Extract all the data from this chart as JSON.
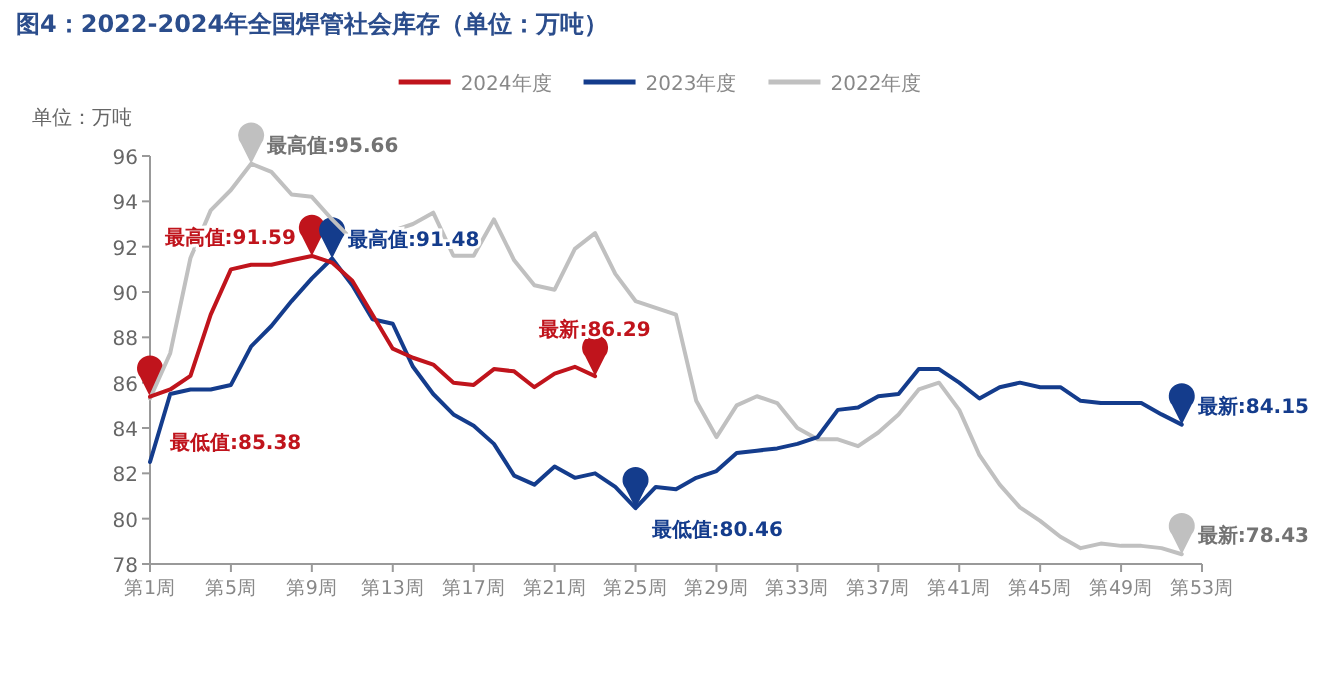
{
  "chart_data": {
    "type": "line",
    "title": "图4：2022-2024年全国焊管社会库存（单位：万吨）",
    "ylabel": "单位：万吨",
    "categories": [
      "第1周",
      null,
      null,
      null,
      "第5周",
      null,
      null,
      null,
      "第9周",
      null,
      null,
      null,
      "第13周",
      null,
      null,
      null,
      "第17周",
      null,
      null,
      null,
      "第21周",
      null,
      null,
      null,
      "第25周",
      null,
      null,
      null,
      "第29周",
      null,
      null,
      null,
      "第33周",
      null,
      null,
      null,
      "第37周",
      null,
      null,
      null,
      "第41周",
      null,
      null,
      null,
      "第45周",
      null,
      null,
      null,
      "第49周",
      null,
      null,
      null,
      "第53周"
    ],
    "ylim": [
      78,
      96
    ],
    "yticks": [
      78,
      80,
      82,
      84,
      86,
      88,
      90,
      92,
      94,
      96
    ],
    "legend": "top",
    "series": [
      {
        "name": "2024年度",
        "color": "#c0141c",
        "values": [
          85.38,
          85.7,
          86.3,
          89.0,
          91.0,
          91.2,
          91.2,
          91.4,
          91.59,
          91.3,
          90.5,
          89.0,
          87.5,
          87.1,
          86.8,
          86.0,
          85.9,
          86.6,
          86.5,
          85.8,
          86.4,
          86.7,
          86.29,
          null,
          null,
          null,
          null,
          null,
          null,
          null,
          null,
          null,
          null,
          null,
          null,
          null,
          null,
          null,
          null,
          null,
          null,
          null,
          null,
          null,
          null,
          null,
          null,
          null,
          null,
          null,
          null,
          null,
          null
        ],
        "value_labels": [
          "最低值:85.38",
          null,
          null,
          null,
          null,
          null,
          null,
          null,
          "最高值:91.59",
          null,
          null,
          null,
          null,
          null,
          null,
          null,
          null,
          null,
          null,
          null,
          null,
          null,
          "最新:86.29",
          null,
          null,
          null,
          null,
          null,
          null,
          null,
          null,
          null,
          null,
          null,
          null,
          null,
          null,
          null,
          null,
          null,
          null,
          null,
          null,
          null,
          null,
          null,
          null,
          null,
          null,
          null,
          null,
          null,
          null
        ]
      },
      {
        "name": "2023年度",
        "color": "#143c8c",
        "values": [
          82.5,
          85.5,
          85.7,
          85.7,
          85.9,
          87.6,
          88.5,
          89.6,
          90.6,
          91.48,
          90.3,
          88.8,
          88.6,
          86.7,
          85.5,
          84.6,
          84.1,
          83.3,
          81.9,
          81.5,
          82.3,
          81.8,
          82.0,
          81.4,
          80.46,
          81.4,
          81.3,
          81.8,
          82.1,
          82.9,
          83.0,
          83.1,
          83.3,
          83.6,
          84.8,
          84.9,
          85.4,
          85.5,
          86.6,
          86.6,
          86.0,
          85.3,
          85.8,
          86.0,
          85.8,
          85.8,
          85.2,
          85.1,
          85.1,
          85.1,
          84.6,
          84.15,
          null
        ],
        "value_labels": [
          null,
          null,
          null,
          null,
          null,
          null,
          null,
          null,
          null,
          "最高值:91.48",
          null,
          null,
          null,
          null,
          null,
          null,
          null,
          null,
          null,
          null,
          null,
          null,
          null,
          null,
          "最低值:80.46",
          null,
          null,
          null,
          null,
          null,
          null,
          null,
          null,
          null,
          null,
          null,
          null,
          null,
          null,
          null,
          null,
          null,
          null,
          null,
          null,
          null,
          null,
          null,
          null,
          null,
          null,
          "最新:84.15",
          null
        ]
      },
      {
        "name": "2022年度",
        "color": "#c0c0c0",
        "values": [
          85.3,
          87.3,
          91.5,
          93.6,
          94.5,
          95.66,
          95.3,
          94.3,
          94.2,
          93.2,
          92.3,
          92.1,
          92.7,
          93.0,
          93.5,
          91.6,
          91.6,
          93.2,
          91.4,
          90.3,
          90.1,
          91.9,
          92.6,
          90.8,
          89.6,
          89.3,
          89.0,
          85.2,
          83.6,
          85.0,
          85.4,
          85.1,
          84.0,
          83.5,
          83.5,
          83.2,
          83.8,
          84.6,
          85.7,
          86.0,
          84.8,
          82.8,
          81.5,
          80.5,
          79.9,
          79.2,
          78.7,
          78.9,
          78.8,
          78.8,
          78.7,
          78.43,
          null
        ],
        "value_labels": [
          null,
          null,
          null,
          null,
          null,
          "最高值:95.66",
          null,
          null,
          null,
          null,
          null,
          null,
          null,
          null,
          null,
          null,
          null,
          null,
          null,
          null,
          null,
          null,
          null,
          null,
          null,
          null,
          null,
          null,
          null,
          null,
          null,
          null,
          null,
          null,
          null,
          null,
          null,
          null,
          null,
          null,
          null,
          null,
          null,
          null,
          null,
          null,
          null,
          null,
          null,
          null,
          null,
          "最新:78.43",
          null
        ]
      }
    ]
  }
}
